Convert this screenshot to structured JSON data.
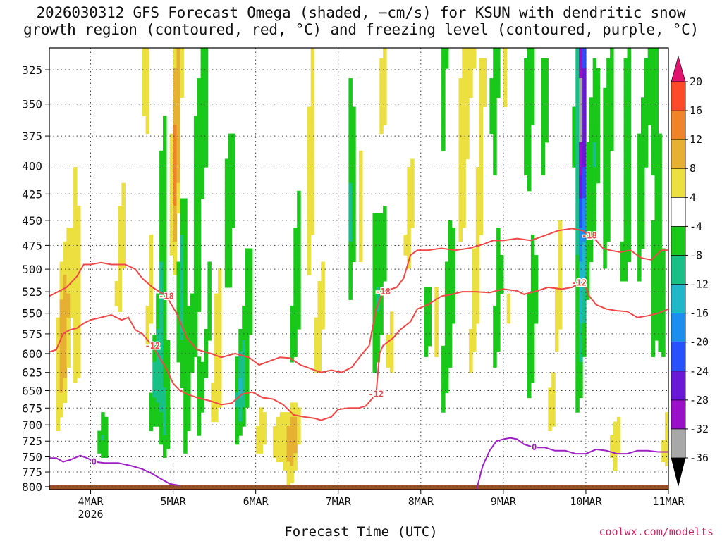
{
  "title_line1": "2026030312 GFS Forecast Omega (shaded, −cm/s) for KSUN with dendritic snow",
  "title_line2": "growth region (contoured, red, °C) and freezing level (contoured, purple, °C)",
  "xaxis_title": "Forecast Time (UTC)",
  "credit": "coolwx.com/modelts",
  "chart_data": {
    "type": "heatmap",
    "title": "2026030312 GFS Forecast Omega (shaded, −cm/s) for KSUN with dendritic snow growth region (contoured, red, °C) and freezing level (contoured, purple, °C)",
    "xlabel": "Forecast Time (UTC)",
    "ylabel": "",
    "x_range_hours_from_4MAR00Z": [
      -12,
      168
    ],
    "y_range_hPa": [
      805,
      310
    ],
    "y_scale": "log-pressure (inverted)",
    "y_ticks": [
      325,
      350,
      375,
      400,
      425,
      450,
      475,
      500,
      525,
      550,
      575,
      600,
      625,
      650,
      675,
      700,
      725,
      750,
      775,
      800
    ],
    "x_ticks": [
      {
        "label": "4MAR",
        "hour": 0,
        "sub": "2026"
      },
      {
        "label": "5MAR",
        "hour": 24
      },
      {
        "label": "6MAR",
        "hour": 48
      },
      {
        "label": "7MAR",
        "hour": 72
      },
      {
        "label": "8MAR",
        "hour": 96
      },
      {
        "label": "9MAR",
        "hour": 120
      },
      {
        "label": "10MAR",
        "hour": 144
      },
      {
        "label": "11MAR",
        "hour": 168
      }
    ],
    "grid": true,
    "colorbar": {
      "placement": "right",
      "levels": [
        20,
        16,
        12,
        8,
        4,
        -4,
        -8,
        -12,
        -16,
        -20,
        -24,
        -28,
        -32,
        -36
      ],
      "colors": [
        "#ff3a5a",
        "#ff4a2a",
        "#f08428",
        "#e6b032",
        "#ebe040",
        "#ffffff",
        "#19c819",
        "#18c088",
        "#20b8c8",
        "#1c8ef0",
        "#2850ff",
        "#6a18d8",
        "#9a10c8",
        "#a8a8a8"
      ],
      "above_color": "#e0146e",
      "below_color": "#000000"
    },
    "contours": [
      {
        "label": "-18",
        "color": "#f04848",
        "points": [
          [
            -12,
            530
          ],
          [
            -10,
            526
          ],
          [
            -7,
            520
          ],
          [
            -4,
            508
          ],
          [
            -2,
            495
          ],
          [
            0,
            495
          ],
          [
            3,
            493
          ],
          [
            6,
            495
          ],
          [
            10,
            495
          ],
          [
            13,
            500
          ],
          [
            15,
            510
          ],
          [
            18,
            520
          ],
          [
            22,
            530
          ],
          [
            25,
            550
          ],
          [
            28,
            580
          ],
          [
            31,
            595
          ],
          [
            35,
            600
          ],
          [
            38,
            605
          ],
          [
            42,
            600
          ],
          [
            46,
            605
          ],
          [
            49,
            615
          ],
          [
            52,
            610
          ],
          [
            55,
            605
          ],
          [
            58,
            606
          ],
          [
            61,
            615
          ],
          [
            64,
            620
          ],
          [
            67,
            625
          ],
          [
            70,
            622
          ],
          [
            73,
            625
          ],
          [
            76,
            618
          ],
          [
            79,
            600
          ],
          [
            81,
            590
          ],
          [
            83,
            545
          ],
          [
            85,
            525
          ],
          [
            89,
            520
          ],
          [
            91,
            510
          ],
          [
            93,
            485
          ],
          [
            95,
            480
          ],
          [
            98,
            480
          ],
          [
            102,
            478
          ],
          [
            106,
            480
          ],
          [
            110,
            478
          ],
          [
            114,
            474
          ],
          [
            117,
            470
          ],
          [
            120,
            470
          ],
          [
            124,
            468
          ],
          [
            128,
            470
          ],
          [
            132,
            465
          ],
          [
            136,
            460
          ],
          [
            140,
            458
          ],
          [
            143,
            460
          ],
          [
            145,
            465
          ],
          [
            147,
            470
          ],
          [
            149,
            478
          ],
          [
            151,
            480
          ],
          [
            154,
            482
          ],
          [
            157,
            480
          ],
          [
            160,
            488
          ],
          [
            163,
            490
          ],
          [
            166,
            480
          ],
          [
            168,
            480
          ]
        ]
      },
      {
        "label": "-12",
        "color": "#f04848",
        "points": [
          [
            -12,
            598
          ],
          [
            -10,
            595
          ],
          [
            -8,
            575
          ],
          [
            -6,
            570
          ],
          [
            -4,
            568
          ],
          [
            -2,
            562
          ],
          [
            0,
            558
          ],
          [
            3,
            555
          ],
          [
            6,
            552
          ],
          [
            9,
            558
          ],
          [
            11,
            555
          ],
          [
            13,
            570
          ],
          [
            15,
            575
          ],
          [
            18,
            590
          ],
          [
            20,
            605
          ],
          [
            22,
            620
          ],
          [
            24,
            640
          ],
          [
            26,
            650
          ],
          [
            28,
            655
          ],
          [
            31,
            660
          ],
          [
            35,
            665
          ],
          [
            38,
            670
          ],
          [
            41,
            668
          ],
          [
            44,
            655
          ],
          [
            47,
            652
          ],
          [
            50,
            660
          ],
          [
            53,
            662
          ],
          [
            56,
            670
          ],
          [
            59,
            685
          ],
          [
            62,
            688
          ],
          [
            65,
            690
          ],
          [
            67,
            693
          ],
          [
            70,
            688
          ],
          [
            72,
            677
          ],
          [
            75,
            675
          ],
          [
            78,
            675
          ],
          [
            80,
            672
          ],
          [
            83,
            655
          ],
          [
            84,
            600
          ],
          [
            85,
            590
          ],
          [
            88,
            580
          ],
          [
            90,
            570
          ],
          [
            93,
            560
          ],
          [
            95,
            545
          ],
          [
            98,
            540
          ],
          [
            102,
            530
          ],
          [
            105,
            528
          ],
          [
            108,
            525
          ],
          [
            112,
            525
          ],
          [
            116,
            526
          ],
          [
            120,
            522
          ],
          [
            124,
            524
          ],
          [
            126,
            528
          ],
          [
            129,
            525
          ],
          [
            133,
            520
          ],
          [
            137,
            522
          ],
          [
            140,
            520
          ],
          [
            142,
            515
          ],
          [
            144,
            520
          ],
          [
            145,
            530
          ],
          [
            147,
            540
          ],
          [
            150,
            545
          ],
          [
            153,
            547
          ],
          [
            156,
            548
          ],
          [
            159,
            555
          ],
          [
            162,
            553
          ],
          [
            165,
            550
          ],
          [
            168,
            545
          ]
        ]
      },
      {
        "label": "0",
        "color": "#a020c8",
        "points": [
          [
            -12,
            752
          ],
          [
            -10,
            752
          ],
          [
            -8,
            758
          ],
          [
            -6,
            755
          ],
          [
            -3,
            748
          ],
          [
            -1,
            752
          ],
          [
            1,
            758
          ],
          [
            4,
            760
          ],
          [
            8,
            760
          ],
          [
            12,
            765
          ],
          [
            15,
            770
          ],
          [
            18,
            778
          ],
          [
            20,
            785
          ],
          [
            23,
            795
          ],
          [
            26,
            798
          ]
        ]
      },
      {
        "label": "0",
        "color": "#a020c8",
        "points": [
          [
            112,
            810
          ],
          [
            114,
            765
          ],
          [
            116,
            740
          ],
          [
            118,
            725
          ],
          [
            120,
            722
          ],
          [
            122,
            720
          ],
          [
            124,
            722
          ],
          [
            126,
            730
          ],
          [
            129,
            735
          ],
          [
            132,
            735
          ],
          [
            135,
            740
          ],
          [
            138,
            740
          ],
          [
            141,
            745
          ],
          [
            144,
            745
          ],
          [
            147,
            738
          ],
          [
            150,
            740
          ],
          [
            153,
            745
          ],
          [
            156,
            745
          ],
          [
            159,
            740
          ],
          [
            162,
            740
          ],
          [
            165,
            742
          ],
          [
            168,
            742
          ]
        ]
      }
    ],
    "terrain_pressure_hPa": 805,
    "terrain_color": "#9a5020"
  }
}
